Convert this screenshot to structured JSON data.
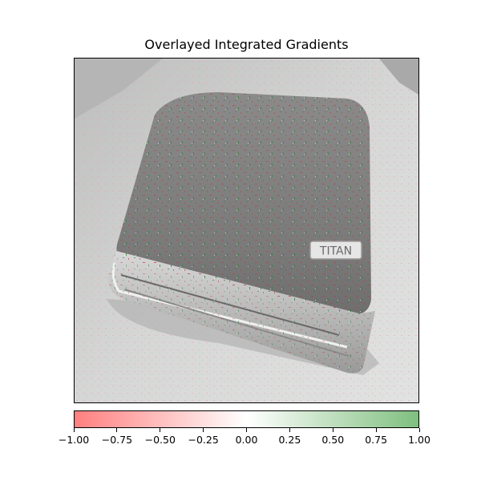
{
  "title": "Overlayed Integrated Gradients",
  "image": {
    "description_icon": "suitcase-photo",
    "badge_text": "TITAN"
  },
  "colorbar": {
    "colors": {
      "negative": "#ff7f7f",
      "middle": "#ffffff",
      "positive": "#7fbf7f"
    },
    "tick_labels": [
      "−1.00",
      "−0.75",
      "−0.50",
      "−0.25",
      "0.00",
      "0.25",
      "0.50",
      "0.75",
      "1.00"
    ]
  }
}
